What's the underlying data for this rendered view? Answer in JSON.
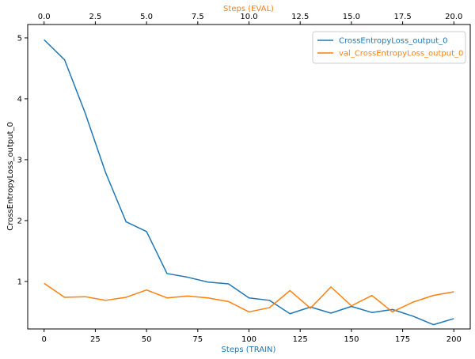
{
  "chart_data": {
    "type": "line",
    "ylabel": "CrossEntropyLoss_output_0",
    "ylim": [
      0.22,
      5.22
    ],
    "y_ticks": [
      1,
      2,
      3,
      4,
      5
    ],
    "grid": false,
    "legend_position": "top-right",
    "x_axes": {
      "bottom": {
        "label": "Steps (TRAIN)",
        "color": "#1f77b4",
        "range": [
          -8,
          208
        ],
        "ticks": [
          0,
          25,
          50,
          75,
          100,
          125,
          150,
          175,
          200
        ],
        "tick_labels": [
          "0",
          "25",
          "50",
          "75",
          "100",
          "125",
          "150",
          "175",
          "200"
        ]
      },
      "top": {
        "label": "Steps (EVAL)",
        "color": "#ff7f0e",
        "range": [
          -0.8,
          20.8
        ],
        "ticks": [
          0.0,
          2.5,
          5.0,
          7.5,
          10.0,
          12.5,
          15.0,
          17.5,
          20.0
        ],
        "tick_labels": [
          "0.0",
          "2.5",
          "5.0",
          "7.5",
          "10.0",
          "12.5",
          "15.0",
          "17.5",
          "20.0"
        ]
      }
    },
    "series": [
      {
        "name": "CrossEntropyLoss_output_0",
        "axis": "bottom",
        "color": "#1f77b4",
        "x": [
          0,
          10,
          20,
          30,
          40,
          50,
          60,
          70,
          80,
          90,
          100,
          110,
          120,
          130,
          140,
          150,
          160,
          170,
          180,
          190,
          200
        ],
        "y": [
          4.97,
          4.64,
          3.77,
          2.79,
          1.98,
          1.82,
          1.13,
          1.07,
          0.99,
          0.96,
          0.73,
          0.69,
          0.47,
          0.58,
          0.48,
          0.59,
          0.49,
          0.54,
          0.43,
          0.29,
          0.39
        ]
      },
      {
        "name": "val_CrossEntropyLoss_output_0",
        "axis": "top",
        "color": "#ff7f0e",
        "x": [
          0,
          1,
          2,
          3,
          4,
          5,
          6,
          7,
          8,
          9,
          10,
          11,
          12,
          13,
          14,
          15,
          16,
          17,
          18,
          19,
          20
        ],
        "y": [
          0.97,
          0.74,
          0.75,
          0.69,
          0.74,
          0.86,
          0.73,
          0.76,
          0.73,
          0.67,
          0.5,
          0.57,
          0.85,
          0.56,
          0.91,
          0.6,
          0.77,
          0.5,
          0.66,
          0.77,
          0.83
        ]
      }
    ]
  }
}
